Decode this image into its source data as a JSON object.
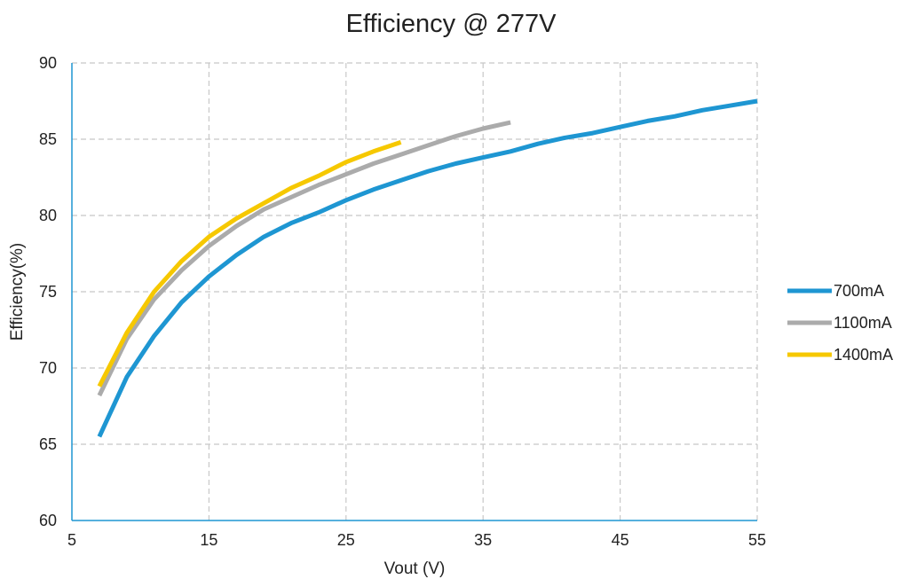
{
  "chart_data": {
    "type": "line",
    "title": "Efficiency @ 277V",
    "xlabel": "Vout (V)",
    "ylabel": "Efficiency(%)",
    "xlim": [
      5,
      55
    ],
    "ylim": [
      60,
      90
    ],
    "xticks": [
      5,
      15,
      25,
      35,
      45,
      55
    ],
    "yticks": [
      60,
      65,
      70,
      75,
      80,
      85,
      90
    ],
    "grid": true,
    "legend_position": "right",
    "series": [
      {
        "name": "700mA",
        "color": "#1e96d2",
        "x": [
          7,
          9,
          11,
          13,
          15,
          17,
          19,
          21,
          23,
          25,
          27,
          29,
          31,
          33,
          35,
          37,
          39,
          41,
          43,
          45,
          47,
          49,
          51,
          53,
          55
        ],
        "y": [
          65.5,
          69.4,
          72.1,
          74.3,
          76.0,
          77.4,
          78.6,
          79.5,
          80.2,
          81.0,
          81.7,
          82.3,
          82.9,
          83.4,
          83.8,
          84.2,
          84.7,
          85.1,
          85.4,
          85.8,
          86.2,
          86.5,
          86.9,
          87.2,
          87.5
        ]
      },
      {
        "name": "1100mA",
        "color": "#ababab",
        "x": [
          7,
          9,
          11,
          13,
          15,
          17,
          19,
          21,
          23,
          25,
          27,
          29,
          31,
          33,
          35,
          37
        ],
        "y": [
          68.2,
          71.9,
          74.5,
          76.4,
          78.0,
          79.3,
          80.4,
          81.2,
          82.0,
          82.7,
          83.4,
          84.0,
          84.6,
          85.2,
          85.7,
          86.1
        ]
      },
      {
        "name": "1400mA",
        "color": "#f6c800",
        "x": [
          7,
          9,
          11,
          13,
          15,
          17,
          19,
          21,
          23,
          25,
          27,
          29
        ],
        "y": [
          68.8,
          72.3,
          75.0,
          77.0,
          78.6,
          79.8,
          80.8,
          81.8,
          82.6,
          83.5,
          84.2,
          84.8
        ]
      }
    ]
  }
}
